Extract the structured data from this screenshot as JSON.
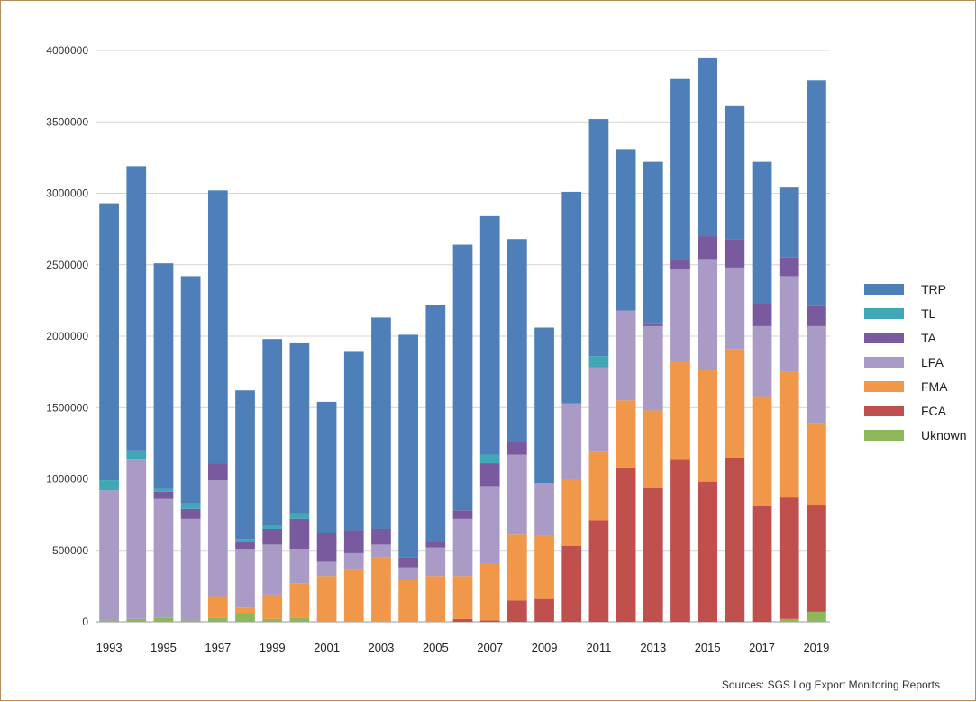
{
  "chart_data": {
    "type": "bar",
    "stacked": true,
    "title": "",
    "xlabel": "",
    "ylabel": "",
    "ylim": [
      0,
      4000000
    ],
    "yticks": [
      0,
      500000,
      1000000,
      1500000,
      2000000,
      2500000,
      3000000,
      3500000,
      4000000
    ],
    "ytick_labels": [
      "0",
      "500000",
      "1000000",
      "1500000",
      "2000000",
      "2500000",
      "3000000",
      "3500000",
      "4000000"
    ],
    "grid": true,
    "legend_position": "right",
    "categories": [
      "1993",
      "1994",
      "1995",
      "1996",
      "1997",
      "1998",
      "1999",
      "2000",
      "2001",
      "2002",
      "2003",
      "2004",
      "2005",
      "2006",
      "2007",
      "2008",
      "2009",
      "2010",
      "2011",
      "2012",
      "2013",
      "2014",
      "2015",
      "2016",
      "2017",
      "2018",
      "2019"
    ],
    "xtick_labels": [
      "1993",
      "",
      "1995",
      "",
      "1997",
      "",
      "1999",
      "",
      "2001",
      "",
      "2003",
      "",
      "2005",
      "",
      "2007",
      "",
      "2009",
      "",
      "2011",
      "",
      "2013",
      "",
      "2015",
      "",
      "2017",
      "",
      "2019"
    ],
    "series": [
      {
        "name": "Uknown",
        "color": "#8db85a",
        "values": [
          10000,
          20000,
          30000,
          10000,
          30000,
          60000,
          20000,
          30000,
          0,
          0,
          0,
          0,
          0,
          0,
          0,
          0,
          0,
          0,
          0,
          0,
          0,
          0,
          0,
          0,
          0,
          20000,
          70000
        ]
      },
      {
        "name": "FCA",
        "color": "#c0504d",
        "values": [
          0,
          0,
          0,
          0,
          0,
          0,
          0,
          0,
          0,
          0,
          0,
          0,
          0,
          20000,
          10000,
          150000,
          160000,
          530000,
          710000,
          1080000,
          940000,
          1140000,
          980000,
          1150000,
          810000,
          850000,
          750000
        ]
      },
      {
        "name": "FMA",
        "color": "#f0974a",
        "values": [
          0,
          0,
          0,
          0,
          150000,
          40000,
          170000,
          240000,
          320000,
          370000,
          450000,
          290000,
          320000,
          300000,
          400000,
          460000,
          440000,
          470000,
          480000,
          470000,
          540000,
          680000,
          780000,
          760000,
          770000,
          880000,
          570000
        ]
      },
      {
        "name": "LFA",
        "color": "#a99bc6",
        "values": [
          910000,
          1120000,
          830000,
          710000,
          810000,
          410000,
          350000,
          240000,
          100000,
          110000,
          90000,
          90000,
          200000,
          400000,
          540000,
          560000,
          370000,
          530000,
          590000,
          630000,
          590000,
          650000,
          780000,
          570000,
          490000,
          670000,
          680000
        ]
      },
      {
        "name": "TA",
        "color": "#7a5a9e",
        "values": [
          0,
          0,
          50000,
          70000,
          120000,
          50000,
          110000,
          210000,
          200000,
          160000,
          110000,
          70000,
          40000,
          60000,
          160000,
          90000,
          0,
          0,
          0,
          0,
          20000,
          70000,
          160000,
          200000,
          160000,
          130000,
          140000
        ]
      },
      {
        "name": "TL",
        "color": "#3fa7b5",
        "values": [
          70000,
          60000,
          20000,
          40000,
          0,
          20000,
          20000,
          40000,
          0,
          0,
          0,
          0,
          0,
          0,
          60000,
          0,
          0,
          0,
          80000,
          0,
          0,
          0,
          0,
          0,
          0,
          0,
          0
        ]
      },
      {
        "name": "TRP",
        "color": "#4f7fb8",
        "values": [
          1940000,
          1990000,
          1580000,
          1590000,
          1910000,
          1040000,
          1310000,
          1190000,
          920000,
          1250000,
          1480000,
          1560000,
          1660000,
          1860000,
          1670000,
          1420000,
          1090000,
          1480000,
          1660000,
          1130000,
          1130000,
          1260000,
          1250000,
          930000,
          990000,
          490000,
          1580000
        ]
      }
    ],
    "legend_order": [
      "TRP",
      "TL",
      "TA",
      "LFA",
      "FMA",
      "FCA",
      "Uknown"
    ]
  },
  "source_note": "Sources: SGS Log Export Monitoring Reports"
}
